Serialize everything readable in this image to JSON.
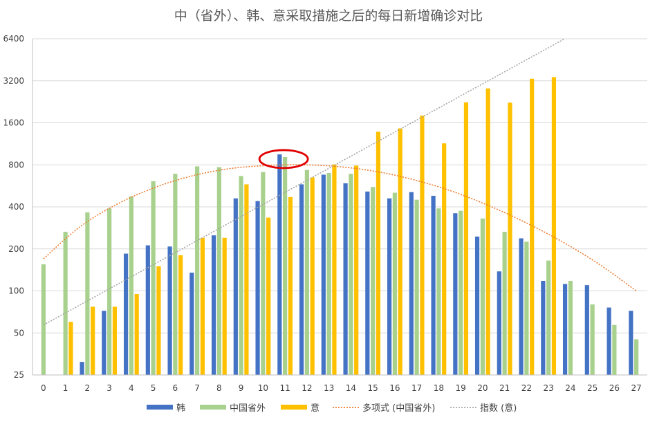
{
  "chart_data": {
    "type": "bar",
    "title": "中（省外）、韩、意采取措施之后的每日新增确诊对比",
    "xlabel": "",
    "ylabel": "",
    "y_scale": "log2",
    "ylim": [
      25,
      6400
    ],
    "y_ticks": [
      "25",
      "50",
      "100",
      "200",
      "400",
      "800",
      "1600",
      "3200",
      "6400"
    ],
    "grid": true,
    "legend_position": "bottom",
    "categories": [
      "0",
      "1",
      "2",
      "3",
      "4",
      "5",
      "6",
      "7",
      "8",
      "9",
      "10",
      "11",
      "12",
      "13",
      "14",
      "15",
      "16",
      "17",
      "18",
      "19",
      "20",
      "21",
      "22",
      "23",
      "24",
      "25",
      "26",
      "27"
    ],
    "series": [
      {
        "name": "韩",
        "color": "#4472C4",
        "values": [
          null,
          24,
          31,
          72,
          185,
          212,
          208,
          135,
          250,
          460,
          440,
          950,
          580,
          680,
          590,
          515,
          460,
          510,
          480,
          360,
          245,
          138,
          238,
          118,
          112,
          110,
          76,
          72
        ]
      },
      {
        "name": "中国省外",
        "color": "#A9D18E",
        "values": [
          155,
          265,
          365,
          390,
          475,
          610,
          690,
          780,
          770,
          665,
          710,
          910,
          735,
          700,
          690,
          555,
          505,
          450,
          390,
          375,
          330,
          265,
          225,
          165,
          118,
          80,
          57,
          45
        ]
      },
      {
        "name": "意",
        "color": "#FFC000",
        "values": [
          null,
          60,
          77,
          77,
          95,
          150,
          180,
          240,
          240,
          580,
          335,
          470,
          650,
          805,
          790,
          1380,
          1460,
          1800,
          1140,
          2240,
          2820,
          2230,
          3310,
          3400,
          null,
          null,
          null,
          null
        ]
      }
    ],
    "trendlines": [
      {
        "name": "多项式 (中国省外)",
        "type": "polynomial",
        "color": "#ED7D31",
        "values": [
          170,
          290,
          420,
          550,
          665,
          750,
          790,
          800,
          775,
          715,
          625,
          520,
          410,
          310,
          225,
          155,
          100
        ]
      },
      {
        "name": "指数 (意)",
        "type": "exponential",
        "base": 57,
        "growth": 1.22,
        "color": "#A6A6A6"
      }
    ],
    "annotations": [
      {
        "type": "ellipse",
        "color": "#E00000",
        "category": "11",
        "value": 900
      }
    ]
  }
}
